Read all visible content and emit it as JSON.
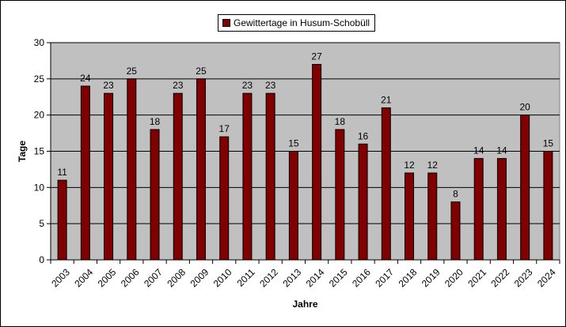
{
  "chart_data": {
    "type": "bar",
    "categories": [
      "2003",
      "2004",
      "2005",
      "2006",
      "2007",
      "2008",
      "2009",
      "2010",
      "2011",
      "2012",
      "2013",
      "2014",
      "2015",
      "2016",
      "2017",
      "2018",
      "2019",
      "2020",
      "2021",
      "2022",
      "2023",
      "2024"
    ],
    "series": [
      {
        "name": "Gewittertage in Husum-Schobüll",
        "values": [
          11,
          24,
          23,
          25,
          18,
          23,
          25,
          17,
          23,
          23,
          15,
          27,
          18,
          16,
          21,
          12,
          12,
          8,
          14,
          14,
          20,
          15
        ],
        "color": "#800000"
      }
    ],
    "xlabel": "Jahre",
    "ylabel": "Tage",
    "ylim": [
      0,
      30
    ],
    "yticks": [
      0,
      5,
      10,
      15,
      20,
      25,
      30
    ],
    "grid": true,
    "legend_position": "top-center",
    "plot_background": "#c0c0c0"
  }
}
